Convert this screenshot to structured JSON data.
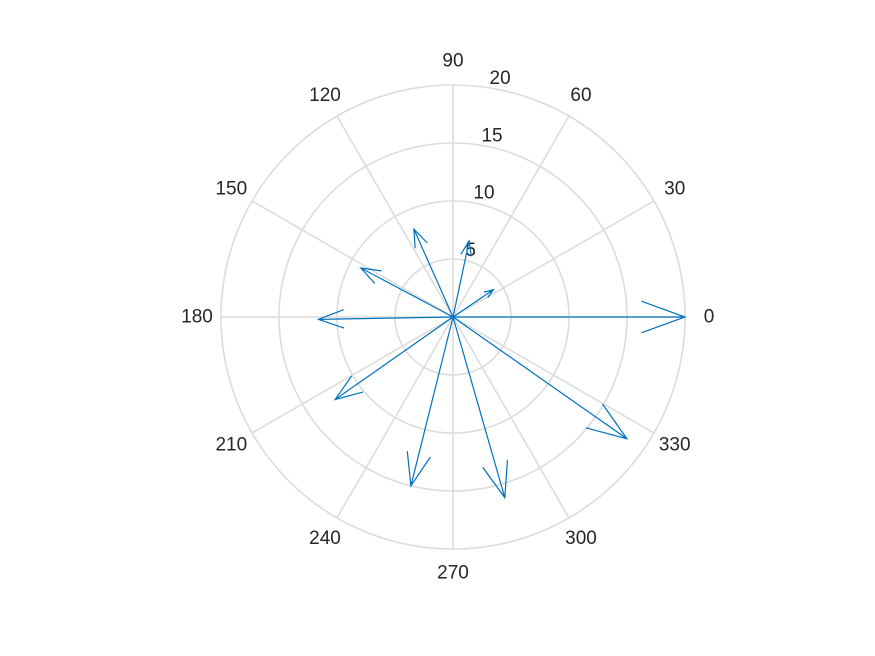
{
  "chart_data": {
    "type": "compass",
    "title": "",
    "rlim": [
      0,
      20
    ],
    "r_ticks": [
      5,
      10,
      15,
      20
    ],
    "theta_ticks": [
      0,
      30,
      60,
      90,
      120,
      150,
      180,
      210,
      240,
      270,
      300,
      330
    ],
    "grid": true,
    "color": "#0072bd",
    "vectors": [
      {
        "angle": 0,
        "magnitude": 20
      },
      {
        "angle": 34,
        "magnitude": 4.2
      },
      {
        "angle": 78,
        "magnitude": 6.7
      },
      {
        "angle": 114,
        "magnitude": 8.3
      },
      {
        "angle": 152,
        "magnitude": 9.0
      },
      {
        "angle": 181,
        "magnitude": 11.6
      },
      {
        "angle": 215,
        "magnitude": 12.4
      },
      {
        "angle": 256,
        "magnitude": 15.0
      },
      {
        "angle": 286,
        "magnitude": 16.2
      },
      {
        "angle": 325,
        "magnitude": 18.3
      }
    ]
  }
}
